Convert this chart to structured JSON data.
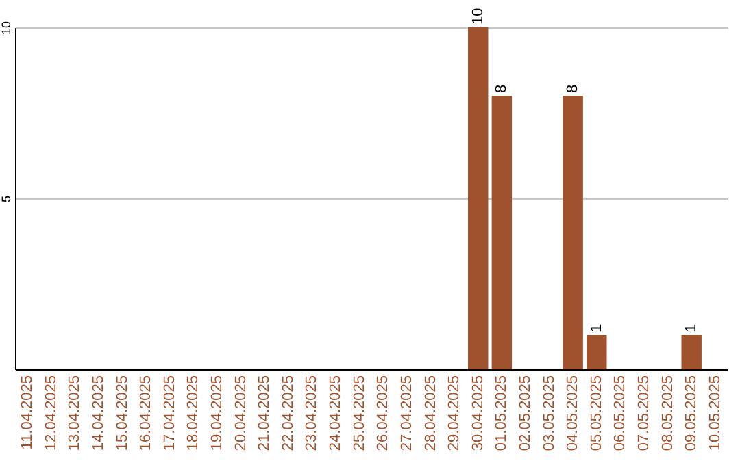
{
  "chart_data": {
    "type": "bar",
    "categories": [
      "11.04.2025",
      "12.04.2025",
      "13.04.2025",
      "14.04.2025",
      "15.04.2025",
      "16.04.2025",
      "17.04.2025",
      "18.04.2025",
      "19.04.2025",
      "20.04.2025",
      "21.04.2025",
      "22.04.2025",
      "23.04.2025",
      "24.04.2025",
      "25.04.2025",
      "26.04.2025",
      "27.04.2025",
      "28.04.2025",
      "29.04.2025",
      "30.04.2025",
      "01.05.2025",
      "02.05.2025",
      "03.05.2025",
      "04.05.2025",
      "05.05.2025",
      "06.05.2025",
      "07.05.2025",
      "08.05.2025",
      "09.05.2025",
      "10.05.2025"
    ],
    "values": [
      0,
      0,
      0,
      0,
      0,
      0,
      0,
      0,
      0,
      0,
      0,
      0,
      0,
      0,
      0,
      0,
      0,
      0,
      0,
      10,
      8,
      0,
      0,
      8,
      1,
      0,
      0,
      0,
      1,
      0
    ],
    "value_labels": [
      null,
      null,
      null,
      null,
      null,
      null,
      null,
      null,
      null,
      null,
      null,
      null,
      null,
      null,
      null,
      null,
      null,
      null,
      null,
      "10",
      "8",
      null,
      null,
      "8",
      "1",
      null,
      null,
      null,
      "1",
      null
    ],
    "color": "#a0522d",
    "ylim": [
      0,
      10
    ],
    "yticks": [
      5,
      10
    ],
    "grid": "y"
  }
}
